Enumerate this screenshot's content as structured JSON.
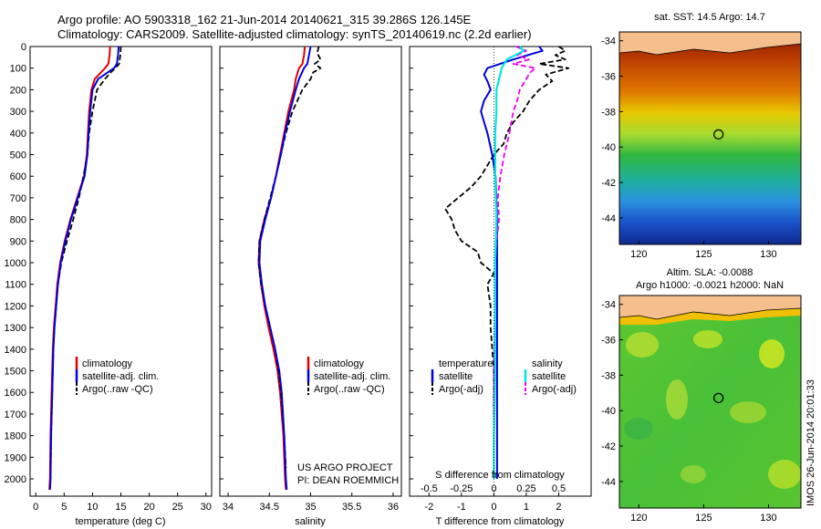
{
  "header": {
    "line1": "Argo profile: AO 5903318_162 21-Jun-2014 20140621_315 39.286S 126.145E",
    "line2": "Climatology: CARS2009. Satellite-adjusted climatology: synTS_20140619.nc (2.2d earlier)"
  },
  "credit": {
    "line1": "US ARGO PROJECT",
    "line2": "PI: DEAN ROEMMICH"
  },
  "stamp": "IMOS 26-Jun-2014 20:01:33",
  "colors": {
    "clim": "#e00000",
    "sat": "#0000dd",
    "argo": "#000000",
    "sal_sat": "#00e5e5",
    "sal_argo": "#ee00ee"
  },
  "chart_data": [
    {
      "type": "line",
      "panel": "temperature",
      "xlabel": "temperature (deg C)",
      "xlim": [
        -1,
        31
      ],
      "ylim": [
        2080,
        0
      ],
      "xticks": [
        0,
        5,
        10,
        15,
        20,
        25,
        30
      ],
      "yticks": [
        0,
        100,
        200,
        300,
        400,
        500,
        600,
        700,
        800,
        900,
        1000,
        1100,
        1200,
        1300,
        1400,
        1500,
        1600,
        1700,
        1800,
        1900,
        2000
      ],
      "legend": [
        "climatology",
        "satellite-adj. clim.",
        "Argo(..raw -QC)"
      ],
      "series": [
        {
          "name": "climatology",
          "depth": [
            0,
            40,
            80,
            100,
            150,
            200,
            300,
            400,
            500,
            600,
            700,
            800,
            900,
            1000,
            1100,
            1200,
            1300,
            1400,
            1600,
            1800,
            2000,
            2050
          ],
          "values": [
            13.1,
            13.0,
            12.8,
            12.2,
            10.4,
            9.8,
            9.4,
            9.2,
            9.0,
            8.5,
            7.3,
            6.1,
            5.1,
            4.3,
            3.8,
            3.5,
            3.2,
            3.0,
            2.8,
            2.6,
            2.5,
            2.4
          ]
        },
        {
          "name": "satellite-adj. clim.",
          "depth": [
            0,
            40,
            80,
            100,
            150,
            200,
            300,
            400,
            500,
            600,
            700,
            800,
            900,
            1000,
            1100,
            1200,
            1300,
            1400,
            1600,
            1800,
            2000,
            2050
          ],
          "values": [
            14.6,
            14.5,
            14.3,
            13.8,
            11.0,
            10.0,
            9.6,
            9.3,
            9.1,
            8.6,
            7.4,
            6.2,
            5.2,
            4.4,
            3.9,
            3.6,
            3.3,
            3.1,
            2.9,
            2.7,
            2.6,
            2.5
          ]
        },
        {
          "name": "Argo(..raw -QC)",
          "depth": [
            0,
            40,
            80,
            100,
            120,
            150,
            200,
            300,
            400,
            500,
            600,
            700,
            800,
            900,
            1000,
            1100,
            1200,
            1300,
            1400,
            1600,
            1800,
            2000
          ],
          "values": [
            15.0,
            14.9,
            14.7,
            14.0,
            13.2,
            12.2,
            10.8,
            10.0,
            9.4,
            9.1,
            8.4,
            7.6,
            6.6,
            5.5,
            4.5,
            3.9,
            3.6,
            3.3,
            3.1,
            2.9,
            2.7,
            2.6
          ]
        }
      ]
    },
    {
      "type": "line",
      "panel": "salinity",
      "xlabel": "salinity",
      "xlim": [
        33.9,
        36.1
      ],
      "ylim": [
        2080,
        0
      ],
      "xticks": [
        34,
        34.5,
        35,
        35.5,
        36
      ],
      "legend": [
        "climatology",
        "satellite-adj. clim.",
        "Argo(..raw -QC)"
      ],
      "series": [
        {
          "name": "climatology",
          "depth": [
            0,
            40,
            80,
            100,
            150,
            200,
            300,
            400,
            500,
            600,
            700,
            800,
            900,
            1000,
            1100,
            1200,
            1300,
            1400,
            1500,
            1600,
            1800,
            2000,
            2050
          ],
          "values": [
            34.93,
            34.92,
            34.9,
            34.86,
            34.82,
            34.8,
            34.73,
            34.68,
            34.63,
            34.58,
            34.52,
            34.44,
            34.38,
            34.37,
            34.4,
            34.44,
            34.49,
            34.55,
            34.6,
            34.63,
            34.67,
            34.69,
            34.7
          ]
        },
        {
          "name": "satellite-adj. clim.",
          "depth": [
            0,
            40,
            80,
            100,
            150,
            200,
            300,
            400,
            500,
            600,
            700,
            800,
            900,
            1000,
            1100,
            1200,
            1300,
            1400,
            1500,
            1600,
            1800,
            2000,
            2050
          ],
          "values": [
            35.0,
            34.98,
            34.96,
            34.92,
            34.86,
            34.82,
            34.75,
            34.69,
            34.64,
            34.58,
            34.52,
            34.45,
            34.39,
            34.38,
            34.41,
            34.45,
            34.51,
            34.57,
            34.62,
            34.65,
            34.68,
            34.7,
            34.71
          ]
        },
        {
          "name": "Argo(..raw -QC)",
          "depth": [
            0,
            30,
            60,
            80,
            100,
            120,
            150,
            200,
            300,
            400,
            500,
            600,
            700,
            800,
            900,
            1000,
            1100,
            1200,
            1300,
            1400,
            1500,
            1600,
            1800,
            1950
          ],
          "values": [
            35.1,
            35.08,
            35.12,
            35.05,
            35.12,
            35.03,
            35.0,
            34.9,
            34.78,
            34.7,
            34.64,
            34.58,
            34.51,
            34.44,
            34.38,
            34.37,
            34.4,
            34.45,
            34.51,
            34.57,
            34.61,
            34.64,
            34.68,
            34.7
          ]
        }
      ]
    },
    {
      "type": "line",
      "panel": "differences",
      "xlabel": "T difference from climatology",
      "xlabel_top": "S difference from climatology",
      "xlim": [
        -2.6,
        3.0
      ],
      "ylim": [
        2080,
        0
      ],
      "xticks": [
        -2,
        -1,
        0,
        1,
        2
      ],
      "xticks_s_labels": [
        "-0.5",
        "-0.25",
        "0",
        "0.25",
        "0.5"
      ],
      "legend_titles": [
        "temperature",
        "salinity"
      ],
      "legend": [
        "satellite",
        "Argo(-adj)",
        "satellite",
        "Argo(-adj)"
      ],
      "series": [
        {
          "name": "satellite",
          "quantity": "T difference",
          "depth": [
            0,
            20,
            60,
            100,
            130,
            160,
            200,
            250,
            300,
            350,
            400,
            500,
            600,
            800,
            1000,
            1200,
            1500,
            1800,
            2000
          ],
          "values": [
            1.4,
            1.5,
            0.6,
            -0.2,
            -0.3,
            -0.2,
            -0.1,
            -0.3,
            -0.4,
            -0.3,
            -0.2,
            -0.05,
            0.05,
            0.1,
            0.1,
            0.1,
            0.1,
            0.1,
            0.1
          ]
        },
        {
          "name": "Argo(-adj)",
          "quantity": "T difference",
          "depth": [
            0,
            20,
            40,
            60,
            80,
            100,
            130,
            160,
            200,
            250,
            300,
            350,
            400,
            450,
            500,
            550,
            600,
            650,
            700,
            750,
            800,
            850,
            900,
            950,
            1000,
            1050,
            1100,
            1200,
            1300,
            1500,
            1800,
            2000
          ],
          "values": [
            2.0,
            2.2,
            1.9,
            2.2,
            1.4,
            2.3,
            1.6,
            1.8,
            1.4,
            1.1,
            0.9,
            0.6,
            0.4,
            0.3,
            0.0,
            -0.2,
            -0.4,
            -0.7,
            -1.1,
            -1.5,
            -1.3,
            -1.2,
            -1.0,
            -0.5,
            -0.4,
            0.0,
            -0.2,
            -0.1,
            -0.1,
            0.0,
            0.0,
            0.0
          ]
        },
        {
          "name": "satellite",
          "quantity": "S difference",
          "depth": [
            0,
            20,
            60,
            100,
            150,
            200,
            300,
            400,
            500,
            600,
            800,
            1000,
            1200,
            1500,
            1800,
            2000
          ],
          "values": [
            0.2,
            0.23,
            0.1,
            0.06,
            0.04,
            0.02,
            0.02,
            0.01,
            0.01,
            0.01,
            0.02,
            0.01,
            0.01,
            0.01,
            0.0,
            0.0
          ]
        },
        {
          "name": "Argo(-adj)",
          "quantity": "S difference",
          "depth": [
            0,
            20,
            40,
            60,
            80,
            100,
            120,
            150,
            200,
            250,
            300,
            400,
            500,
            600,
            700,
            800,
            900,
            1000,
            1200,
            1500,
            1800,
            2000
          ],
          "values": [
            0.17,
            0.25,
            0.18,
            0.27,
            0.15,
            0.32,
            0.28,
            0.25,
            0.2,
            0.18,
            0.15,
            0.12,
            0.08,
            0.05,
            0.03,
            0.04,
            0.02,
            0.01,
            0.01,
            0.0,
            0.0,
            0.0
          ]
        }
      ]
    },
    {
      "type": "heatmap",
      "panel": "sst-map",
      "title": "sat. SST: 14.5  Argo: 14.7",
      "xlim": [
        118.5,
        132.5
      ],
      "ylim": [
        -45.5,
        -33.5
      ],
      "xticks": [
        120,
        125,
        130
      ],
      "yticks": [
        -34,
        -36,
        -38,
        -40,
        -42,
        -44
      ],
      "profile_lon": 126.145,
      "profile_lat": -39.286
    },
    {
      "type": "heatmap",
      "panel": "sla-map",
      "title": "Altim. SLA: -0.0088",
      "subtitle": "Argo h1000: -0.0021 h2000: NaN",
      "xlim": [
        118.5,
        132.5
      ],
      "ylim": [
        -45.5,
        -33.5
      ],
      "xticks": [
        120,
        125,
        130
      ],
      "yticks": [
        -34,
        -36,
        -38,
        -40,
        -42,
        -44
      ],
      "profile_lon": 126.145,
      "profile_lat": -39.286
    }
  ]
}
